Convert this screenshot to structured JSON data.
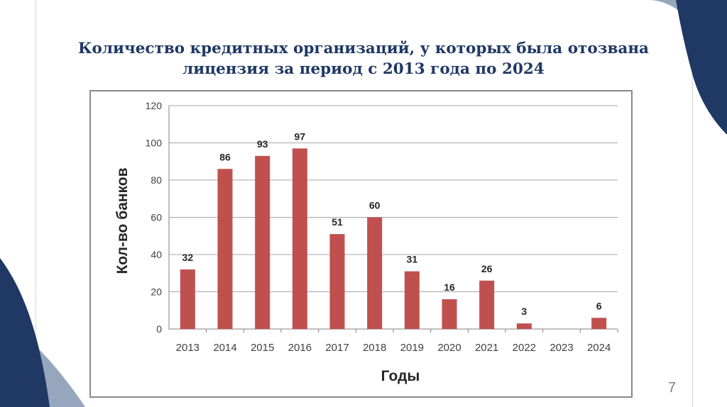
{
  "slide": {
    "title_line1": "Количество кредитных организаций, у которых была отозвана",
    "title_line2": "лицензия за период с 2013 года по 2024",
    "page_number": "7"
  },
  "colors": {
    "bar": "#c0504d",
    "title": "#1f3864",
    "accent_dark": "#1f3864",
    "accent_light": "#8497b0"
  },
  "chart_data": {
    "type": "bar",
    "categories": [
      "2013",
      "2014",
      "2015",
      "2016",
      "2017",
      "2018",
      "2019",
      "2020",
      "2021",
      "2022",
      "2023",
      "2024"
    ],
    "values": [
      32,
      86,
      93,
      97,
      51,
      60,
      31,
      16,
      26,
      3,
      0,
      6
    ],
    "data_labels": [
      "32",
      "86",
      "93",
      "97",
      "51",
      "60",
      "31",
      "16",
      "26",
      "3",
      "",
      "6"
    ],
    "xlabel": "Годы",
    "ylabel": "Кол-во банков",
    "ylim": [
      0,
      120
    ],
    "yticks": [
      0,
      20,
      40,
      60,
      80,
      100,
      120
    ],
    "grid": true,
    "legend": "none"
  }
}
